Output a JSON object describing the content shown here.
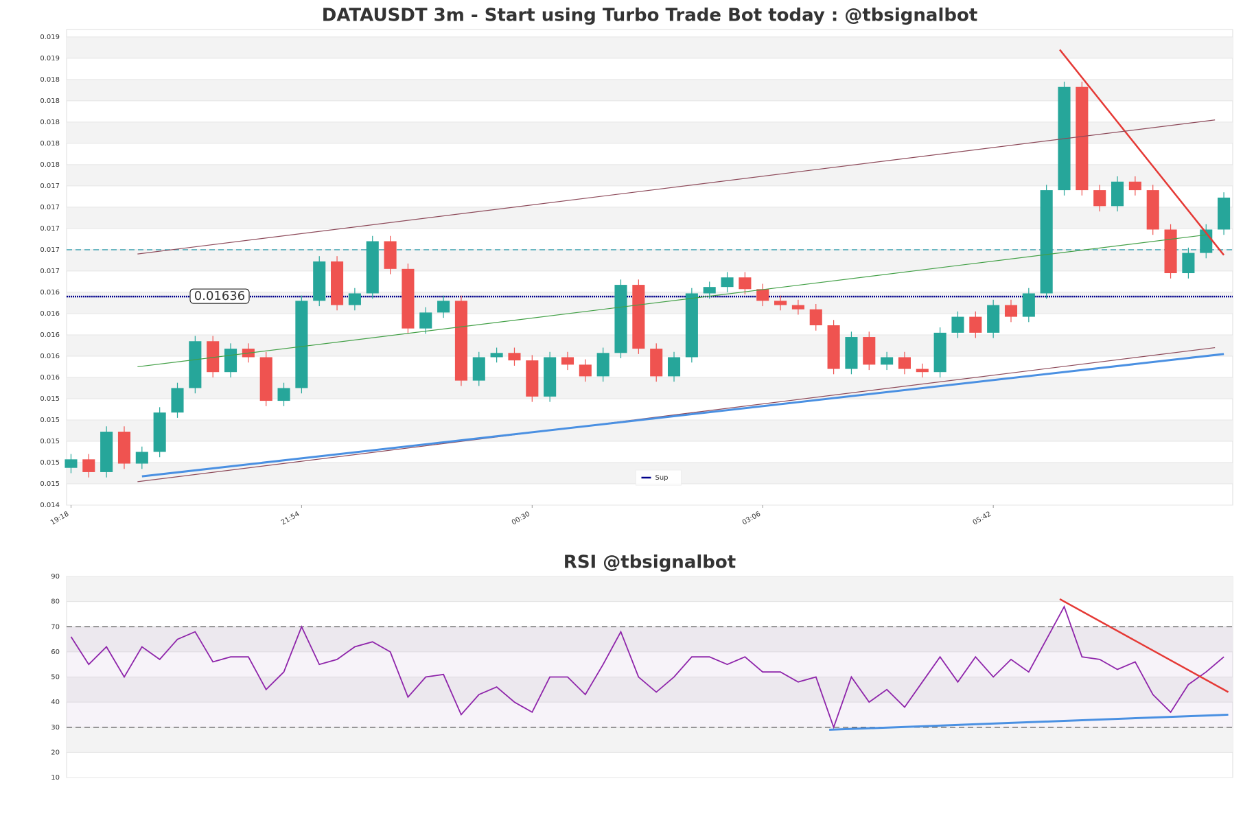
{
  "chart_data": [
    {
      "type": "candlestick",
      "title": "DATAUSDT 3m - Start using Turbo Trade Bot today : @tbsignalbot",
      "x": [
        0,
        4,
        8,
        12,
        16,
        20,
        24,
        28,
        32,
        36,
        40,
        44,
        48,
        52,
        56,
        60,
        64,
        68,
        72,
        76,
        80,
        84,
        88,
        92,
        96,
        100,
        104,
        108,
        112,
        116,
        120,
        124,
        128,
        132,
        136,
        140,
        144,
        148,
        152,
        156,
        160,
        164,
        168,
        172,
        176,
        180,
        184,
        188,
        192,
        196,
        200,
        204,
        208,
        212,
        216,
        220,
        224,
        228,
        232,
        236,
        240,
        244,
        248,
        252,
        256,
        260
      ],
      "open": [
        0.01475,
        0.01483,
        0.01471,
        0.01509,
        0.01479,
        0.0149,
        0.01527,
        0.0155,
        0.01594,
        0.01565,
        0.01587,
        0.01579,
        0.01538,
        0.0155,
        0.01632,
        0.01669,
        0.01628,
        0.01639,
        0.01688,
        0.01662,
        0.01606,
        0.01621,
        0.01632,
        0.01557,
        0.01579,
        0.01583,
        0.01576,
        0.01542,
        0.01579,
        0.01572,
        0.01561,
        0.01583,
        0.01647,
        0.01587,
        0.01561,
        0.01579,
        0.01639,
        0.01645,
        0.01654,
        0.01643,
        0.01632,
        0.01628,
        0.01624,
        0.01609,
        0.01568,
        0.01598,
        0.01572,
        0.01579,
        0.01568,
        0.01565,
        0.01602,
        0.01617,
        0.01602,
        0.01628,
        0.01617,
        0.01639,
        0.01736,
        0.01833,
        0.01736,
        0.01721,
        0.01744,
        0.01736,
        0.01699,
        0.01658,
        0.01677,
        0.01699
      ],
      "high": [
        0.01488,
        0.01488,
        0.01514,
        0.01514,
        0.01495,
        0.01532,
        0.01555,
        0.01599,
        0.01599,
        0.01592,
        0.01592,
        0.01584,
        0.01555,
        0.01637,
        0.01674,
        0.01674,
        0.01644,
        0.01693,
        0.01693,
        0.01667,
        0.01626,
        0.01637,
        0.01637,
        0.01584,
        0.01588,
        0.01588,
        0.01581,
        0.01584,
        0.01584,
        0.01577,
        0.01588,
        0.01652,
        0.01652,
        0.01592,
        0.01584,
        0.01644,
        0.0165,
        0.01659,
        0.01659,
        0.01648,
        0.01637,
        0.01633,
        0.01629,
        0.01614,
        0.01603,
        0.01603,
        0.01584,
        0.01584,
        0.01573,
        0.01607,
        0.01622,
        0.01622,
        0.01633,
        0.01633,
        0.01644,
        0.01741,
        0.01838,
        0.01838,
        0.01741,
        0.01749,
        0.01749,
        0.01741,
        0.01704,
        0.01682,
        0.01704,
        0.01734
      ],
      "low": [
        0.0147,
        0.01466,
        0.01466,
        0.01474,
        0.01474,
        0.01485,
        0.01522,
        0.01545,
        0.0156,
        0.0156,
        0.01574,
        0.01533,
        0.01533,
        0.01545,
        0.01627,
        0.01623,
        0.01623,
        0.01634,
        0.01657,
        0.01601,
        0.01601,
        0.01616,
        0.01552,
        0.01552,
        0.01574,
        0.01571,
        0.01537,
        0.01537,
        0.01567,
        0.01556,
        0.01556,
        0.01578,
        0.01582,
        0.01556,
        0.01556,
        0.01574,
        0.01634,
        0.0164,
        0.01638,
        0.01627,
        0.01623,
        0.01619,
        0.01604,
        0.01563,
        0.01563,
        0.01567,
        0.01567,
        0.01563,
        0.0156,
        0.0156,
        0.01597,
        0.01597,
        0.01597,
        0.01612,
        0.01612,
        0.01634,
        0.01731,
        0.01731,
        0.01716,
        0.01716,
        0.01731,
        0.01694,
        0.01653,
        0.01653,
        0.01672,
        0.01694
      ],
      "close": [
        0.01483,
        0.01471,
        0.01509,
        0.01479,
        0.0149,
        0.01527,
        0.0155,
        0.01594,
        0.01565,
        0.01587,
        0.01579,
        0.01538,
        0.0155,
        0.01632,
        0.01669,
        0.01628,
        0.01639,
        0.01688,
        0.01662,
        0.01606,
        0.01621,
        0.01632,
        0.01557,
        0.01579,
        0.01583,
        0.01576,
        0.01542,
        0.01579,
        0.01572,
        0.01561,
        0.01583,
        0.01647,
        0.01587,
        0.01561,
        0.01579,
        0.01639,
        0.01645,
        0.01654,
        0.01643,
        0.01632,
        0.01628,
        0.01624,
        0.01609,
        0.01568,
        0.01598,
        0.01572,
        0.01579,
        0.01568,
        0.01565,
        0.01602,
        0.01617,
        0.01602,
        0.01628,
        0.01617,
        0.01639,
        0.01736,
        0.01833,
        0.01736,
        0.01721,
        0.01744,
        0.01736,
        0.01699,
        0.01658,
        0.01677,
        0.01699,
        0.01729
      ],
      "up_color": "#26a69a",
      "down_color": "#ef5350",
      "xlim": [
        -1,
        262
      ],
      "xticks": [
        {
          "value": 0,
          "label": "19:18"
        },
        {
          "value": 52,
          "label": "21:54"
        },
        {
          "value": 104,
          "label": "00:30"
        },
        {
          "value": 156,
          "label": "03:06"
        },
        {
          "value": 208,
          "label": "05:42"
        }
      ],
      "ylim": [
        0.0144,
        0.01887
      ],
      "yticks": [
        {
          "value": 0.0144,
          "label": "0.014"
        },
        {
          "value": 0.0146,
          "label": "0.015"
        },
        {
          "value": 0.0148,
          "label": "0.015"
        },
        {
          "value": 0.015,
          "label": "0.015"
        },
        {
          "value": 0.0152,
          "label": "0.015"
        },
        {
          "value": 0.0154,
          "label": "0.015"
        },
        {
          "value": 0.0156,
          "label": "0.016"
        },
        {
          "value": 0.0158,
          "label": "0.016"
        },
        {
          "value": 0.016,
          "label": "0.016"
        },
        {
          "value": 0.0162,
          "label": "0.016"
        },
        {
          "value": 0.0164,
          "label": "0.016"
        },
        {
          "value": 0.0166,
          "label": "0.017"
        },
        {
          "value": 0.0168,
          "label": "0.017"
        },
        {
          "value": 0.017,
          "label": "0.017"
        },
        {
          "value": 0.0172,
          "label": "0.017"
        },
        {
          "value": 0.0174,
          "label": "0.017"
        },
        {
          "value": 0.0176,
          "label": "0.018"
        },
        {
          "value": 0.0178,
          "label": "0.018"
        },
        {
          "value": 0.018,
          "label": "0.018"
        },
        {
          "value": 0.0182,
          "label": "0.018"
        },
        {
          "value": 0.0184,
          "label": "0.018"
        },
        {
          "value": 0.0186,
          "label": "0.019"
        },
        {
          "value": 0.0188,
          "label": "0.019"
        }
      ],
      "grid": true,
      "hlines": [
        {
          "value": 0.0168,
          "color": "#3aa0b0",
          "dashed": true
        }
      ],
      "level": {
        "name": "Sup",
        "value": 0.01636,
        "color": "#00008b"
      },
      "legend": "lower center",
      "trendlines": [
        {
          "x": [
            223,
            260
          ],
          "y": [
            0.01868,
            0.01675
          ],
          "color": "#e53935",
          "width": 2.5
        },
        {
          "x": [
            15,
            258
          ],
          "y": [
            0.01676,
            0.01802
          ],
          "color": "#8d4a5a",
          "width": 1.2
        },
        {
          "x": [
            15,
            258
          ],
          "y": [
            0.01462,
            0.01588
          ],
          "color": "#8d4a5a",
          "width": 1.2
        },
        {
          "x": [
            15,
            256
          ],
          "y": [
            0.0157,
            0.01694
          ],
          "color": "#43a047",
          "width": 1.2
        },
        {
          "x": [
            16,
            260
          ],
          "y": [
            0.01467,
            0.01582
          ],
          "color": "#4a90e2",
          "width": 3
        }
      ]
    },
    {
      "type": "line",
      "title": "RSI @tbsignalbot",
      "x": [
        0,
        4,
        8,
        12,
        16,
        20,
        24,
        28,
        32,
        36,
        40,
        44,
        48,
        52,
        56,
        60,
        64,
        68,
        72,
        76,
        80,
        84,
        88,
        92,
        96,
        100,
        104,
        108,
        112,
        116,
        120,
        124,
        128,
        132,
        136,
        140,
        144,
        148,
        152,
        156,
        160,
        164,
        168,
        172,
        176,
        180,
        184,
        188,
        192,
        196,
        200,
        204,
        208,
        212,
        216,
        220,
        224,
        228,
        232,
        236,
        240,
        244,
        248,
        252,
        256,
        260
      ],
      "values": [
        66,
        55,
        62,
        50,
        62,
        57,
        65,
        68,
        56,
        58,
        58,
        45,
        52,
        70,
        55,
        57,
        62,
        64,
        60,
        42,
        50,
        51,
        35,
        43,
        46,
        40,
        36,
        50,
        50,
        43,
        55,
        68,
        50,
        44,
        50,
        58,
        58,
        55,
        58,
        52,
        52,
        48,
        50,
        30,
        50,
        40,
        45,
        38,
        48,
        58,
        48,
        58,
        50,
        57,
        52,
        65,
        78,
        58,
        57,
        53,
        56,
        43,
        36,
        47,
        52,
        58
      ],
      "color": "#8e24aa",
      "xlim": [
        -1,
        262
      ],
      "ylim": [
        10,
        90
      ],
      "yticks": [
        10,
        20,
        30,
        40,
        50,
        60,
        70,
        80,
        90
      ],
      "grid": true,
      "band": [
        30,
        70
      ],
      "hlines": [
        {
          "value": 30,
          "color": "#555555",
          "dashed": true
        },
        {
          "value": 70,
          "color": "#555555",
          "dashed": true
        }
      ],
      "trendlines": [
        {
          "x": [
            223,
            261
          ],
          "y": [
            81,
            44
          ],
          "color": "#e53935",
          "width": 2.5
        },
        {
          "x": [
            171,
            261
          ],
          "y": [
            29,
            35
          ],
          "color": "#4a90e2",
          "width": 3
        }
      ]
    }
  ]
}
